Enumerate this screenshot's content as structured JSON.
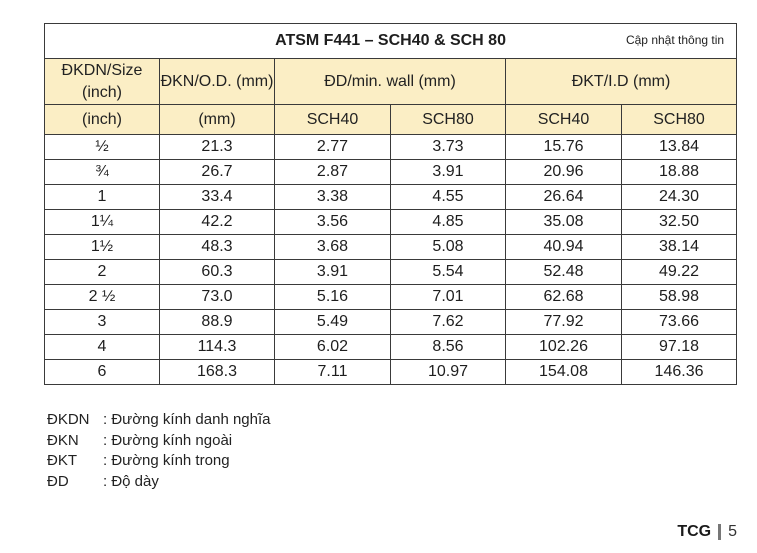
{
  "table": {
    "title": "ATSM F441 – SCH40 & SCH 80",
    "update_link": "Cập nhật thông tin",
    "header": {
      "col1": "ĐKDN/Size (inch)",
      "col2": "ĐKN/O.D. (mm)",
      "group_dd": "ĐD/min. wall (mm)",
      "group_dkt": "ĐKT/I.D (mm)"
    },
    "subheader": [
      "(inch)",
      "(mm)",
      "SCH40",
      "SCH80",
      "SCH40",
      "SCH80"
    ],
    "rows": [
      [
        "½",
        "21.3",
        "2.77",
        "3.73",
        "15.76",
        "13.84"
      ],
      [
        "¾",
        "26.7",
        "2.87",
        "3.91",
        "20.96",
        "18.88"
      ],
      [
        "1",
        "33.4",
        "3.38",
        "4.55",
        "26.64",
        "24.30"
      ],
      [
        "1¼",
        "42.2",
        "3.56",
        "4.85",
        "35.08",
        "32.50"
      ],
      [
        "1½",
        "48.3",
        "3.68",
        "5.08",
        "40.94",
        "38.14"
      ],
      [
        "2",
        "60.3",
        "3.91",
        "5.54",
        "52.48",
        "49.22"
      ],
      [
        "2 ½",
        "73.0",
        "5.16",
        "7.01",
        "62.68",
        "58.98"
      ],
      [
        "3",
        "88.9",
        "5.49",
        "7.62",
        "77.92",
        "73.66"
      ],
      [
        "4",
        "114.3",
        "6.02",
        "8.56",
        "102.26",
        "97.18"
      ],
      [
        "6",
        "168.3",
        "7.11",
        "10.97",
        "154.08",
        "146.36"
      ]
    ]
  },
  "footnotes": [
    {
      "abbr": "ĐKDN",
      "text": ": Đường kính danh nghĩa"
    },
    {
      "abbr": "ĐKN",
      "text": ": Đường kính ngoài"
    },
    {
      "abbr": "ĐKT",
      "text": ": Đường kính trong"
    },
    {
      "abbr": "ĐD",
      "text": ": Độ dày"
    }
  ],
  "footer": {
    "brand": "TCG",
    "page": "5"
  },
  "colors": {
    "header_bg": "#fbeec5",
    "border": "#3a3a3a"
  }
}
